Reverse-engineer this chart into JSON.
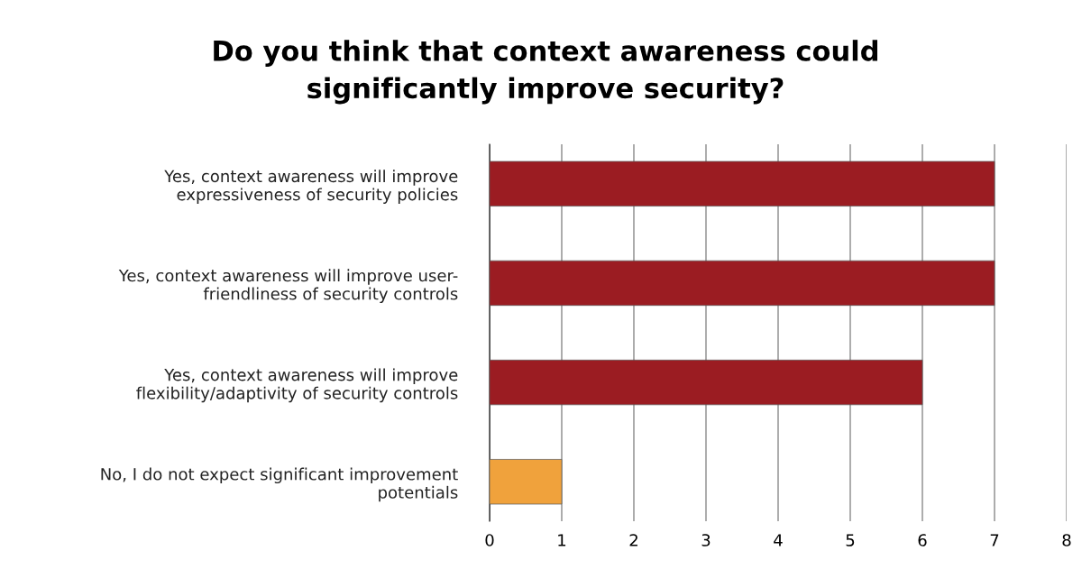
{
  "chart_data": {
    "type": "bar",
    "orientation": "horizontal",
    "title": "Do you think that context awareness could\nsignificantly improve security?",
    "categories": [
      "Yes, context awareness will improve\nexpressiveness of security policies",
      "Yes, context awareness will improve user-\nfriendliness of security controls",
      "Yes, context awareness will improve\nflexibility/adaptivity of security controls",
      "No, I do not expect significant improvement\npotentials"
    ],
    "values": [
      7,
      7,
      6,
      1
    ],
    "colors": [
      "#9b1c22",
      "#9b1c22",
      "#9b1c22",
      "#f0a23c"
    ],
    "xlim": [
      0,
      8
    ],
    "xticks": [
      0,
      1,
      2,
      3,
      4,
      5,
      6,
      7,
      8
    ],
    "grid": "x"
  }
}
